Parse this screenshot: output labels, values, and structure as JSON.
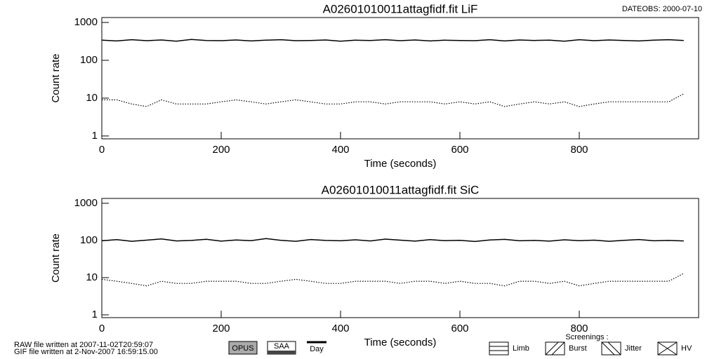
{
  "chart_data": [
    {
      "type": "line",
      "title": "A02601010011attagfidf.fit  LiF",
      "xlabel": "Time (seconds)",
      "ylabel": "Count rate",
      "log_y": true,
      "xlim": [
        0,
        1000
      ],
      "ylim": [
        0.84,
        1350
      ],
      "xticks": [
        0,
        200,
        400,
        600,
        800
      ],
      "yticks": [
        1,
        10,
        100,
        1000
      ],
      "x": [
        0,
        25,
        50,
        75,
        100,
        125,
        150,
        175,
        200,
        225,
        250,
        275,
        300,
        325,
        350,
        375,
        400,
        425,
        450,
        475,
        500,
        525,
        550,
        575,
        600,
        625,
        650,
        675,
        700,
        725,
        750,
        775,
        800,
        825,
        850,
        875,
        900,
        925,
        950,
        975
      ],
      "series": [
        {
          "color": "#000000",
          "linestyle": "solid",
          "values": [
            340,
            325,
            350,
            330,
            345,
            320,
            355,
            335,
            330,
            345,
            325,
            340,
            350,
            330,
            335,
            345,
            320,
            340,
            335,
            350,
            330,
            345,
            325,
            340,
            335,
            330,
            350,
            325,
            345,
            335,
            340,
            320,
            350,
            330,
            345,
            335,
            325,
            340,
            350,
            335
          ]
        },
        {
          "color": "#000000",
          "linestyle": "dotted",
          "values": [
            9,
            9,
            7,
            6,
            9,
            7,
            7,
            7,
            8,
            9,
            8,
            7,
            8,
            9,
            8,
            7,
            7,
            8,
            8,
            7,
            8,
            8,
            8,
            7,
            8,
            7,
            8,
            6,
            7,
            8,
            7,
            8,
            6,
            7,
            8,
            8,
            8,
            8,
            8,
            13
          ]
        }
      ]
    },
    {
      "type": "line",
      "title": "A02601010011attagfidf.fit  SiC",
      "xlabel": "Time (seconds)",
      "ylabel": "Count rate",
      "log_y": true,
      "xlim": [
        0,
        1000
      ],
      "ylim": [
        0.84,
        1350
      ],
      "xticks": [
        0,
        200,
        400,
        600,
        800
      ],
      "yticks": [
        1,
        10,
        100,
        1000
      ],
      "x": [
        0,
        25,
        50,
        75,
        100,
        125,
        150,
        175,
        200,
        225,
        250,
        275,
        300,
        325,
        350,
        375,
        400,
        425,
        450,
        475,
        500,
        525,
        550,
        575,
        600,
        625,
        650,
        675,
        700,
        725,
        750,
        775,
        800,
        825,
        850,
        875,
        900,
        925,
        950,
        975
      ],
      "series": [
        {
          "color": "#000000",
          "linestyle": "solid",
          "values": [
            98,
            105,
            95,
            102,
            110,
            97,
            100,
            108,
            96,
            103,
            99,
            112,
            101,
            95,
            106,
            100,
            98,
            104,
            97,
            109,
            102,
            96,
            105,
            99,
            101,
            94,
            103,
            107,
            98,
            100,
            96,
            104,
            99,
            102,
            95,
            101,
            106,
            98,
            100,
            97
          ]
        },
        {
          "color": "#000000",
          "linestyle": "dotted",
          "values": [
            9,
            8,
            7,
            6,
            8,
            7,
            7,
            8,
            8,
            8,
            7,
            7,
            8,
            9,
            8,
            7,
            7,
            8,
            8,
            8,
            7,
            8,
            8,
            7,
            8,
            7,
            7,
            6,
            8,
            8,
            7,
            8,
            6,
            7,
            8,
            8,
            8,
            8,
            8,
            13
          ]
        }
      ]
    }
  ],
  "dateobs": "DATEOBS: 2000-07-10",
  "footer": {
    "raw": "RAW file written at 2007-11-02T20:59:07",
    "gif": "GIF file written at  2-Nov-2007 16:59:15.00"
  },
  "legend": {
    "opus": "OPUS",
    "saa": "SAA",
    "day": "Day",
    "screenings": "Screenings :",
    "limb": "Limb",
    "burst": "Burst",
    "jitter": "Jitter",
    "hv": "HV"
  }
}
